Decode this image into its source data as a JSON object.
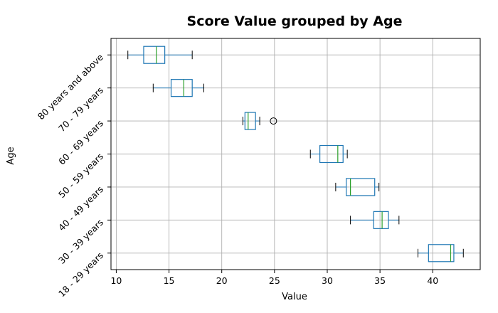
{
  "chart_data": {
    "type": "box",
    "title": "Score Value grouped by Age",
    "xlabel": "Value",
    "ylabel": "Age",
    "xlim": [
      9.5,
      44.5
    ],
    "xticks": [
      10,
      15,
      20,
      25,
      30,
      35,
      40
    ],
    "grid": true,
    "orientation": "horizontal",
    "categories": [
      "18 - 29 years",
      "30 - 39 years",
      "40 - 49 years",
      "50 - 59 years",
      "60 - 69 years",
      "70 - 79 years",
      "80 years and above"
    ],
    "boxes": [
      {
        "whisker_low": 38.6,
        "q1": 39.6,
        "median": 41.7,
        "q3": 42.0,
        "whisker_high": 42.9,
        "outliers": []
      },
      {
        "whisker_low": 32.2,
        "q1": 34.4,
        "median": 35.2,
        "q3": 35.8,
        "whisker_high": 36.8,
        "outliers": []
      },
      {
        "whisker_low": 30.8,
        "q1": 31.8,
        "median": 32.2,
        "q3": 34.5,
        "whisker_high": 34.9,
        "outliers": []
      },
      {
        "whisker_low": 28.4,
        "q1": 29.3,
        "median": 31.0,
        "q3": 31.5,
        "whisker_high": 31.9,
        "outliers": []
      },
      {
        "whisker_low": 22.0,
        "q1": 22.2,
        "median": 22.5,
        "q3": 23.2,
        "whisker_high": 23.6,
        "outliers": [
          24.9
        ]
      },
      {
        "whisker_low": 13.5,
        "q1": 15.2,
        "median": 16.4,
        "q3": 17.2,
        "whisker_high": 18.3,
        "outliers": []
      },
      {
        "whisker_low": 11.1,
        "q1": 12.6,
        "median": 13.8,
        "q3": 14.6,
        "whisker_high": 17.2,
        "outliers": []
      }
    ],
    "colors": {
      "box": "#1f77b4",
      "median": "#2ca02c",
      "whisker": "#1f77b4",
      "cap": "#000000",
      "grid": "#b0b0b0",
      "outlier_edge": "#000000"
    }
  }
}
